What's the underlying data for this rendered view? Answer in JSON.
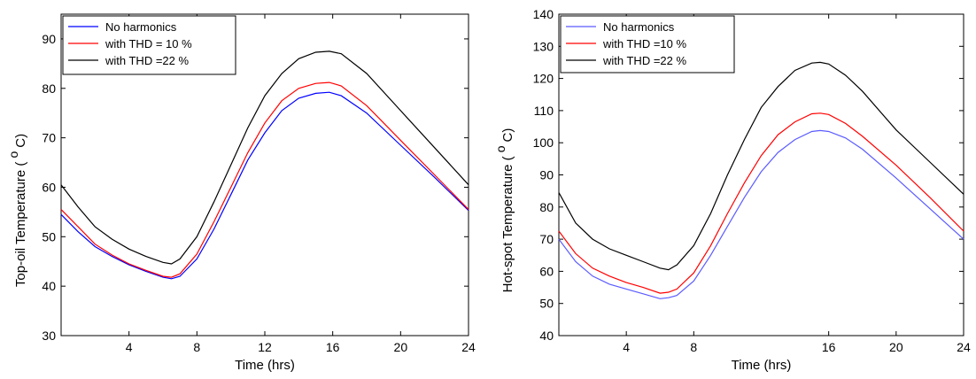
{
  "chart_data": [
    {
      "type": "line",
      "title": "",
      "xlabel": "Time (hrs)",
      "ylabel_main": "Top-oil Temperature (",
      "ylabel_unit": "o",
      "ylabel_unit_suffix": "C)",
      "xlim": [
        0,
        24
      ],
      "ylim": [
        30,
        95
      ],
      "xticks": [
        4,
        8,
        12,
        16,
        20,
        24
      ],
      "yticks": [
        30,
        40,
        50,
        60,
        70,
        80,
        90
      ],
      "legend_position": "top-left",
      "series": [
        {
          "name": "No harmonics",
          "color": "#0000ff",
          "x": [
            0,
            1,
            2,
            3,
            4,
            5,
            6,
            6.5,
            7,
            8,
            9,
            10,
            11,
            12,
            13,
            14,
            15,
            15.8,
            16.5,
            18,
            20,
            22,
            24
          ],
          "y": [
            54.5,
            51,
            48,
            46,
            44.3,
            43,
            41.8,
            41.5,
            42,
            45.5,
            51.5,
            58.5,
            65.5,
            71,
            75.5,
            78,
            79,
            79.2,
            78.5,
            75,
            68.5,
            62,
            55.3
          ]
        },
        {
          "name": "with THD = 10 %",
          "color": "#ff0000",
          "x": [
            0,
            1,
            2,
            3,
            4,
            5,
            6,
            6.5,
            7,
            8,
            9,
            10,
            11,
            12,
            13,
            14,
            15,
            15.8,
            16.5,
            18,
            20,
            22,
            24
          ],
          "y": [
            55.5,
            52,
            48.5,
            46.3,
            44.5,
            43.2,
            42,
            41.8,
            42.5,
            46.5,
            53,
            60,
            67,
            73,
            77.5,
            80,
            81,
            81.2,
            80.5,
            76.5,
            69.5,
            62.5,
            55.5
          ]
        },
        {
          "name": "with THD =22 %",
          "color": "#000000",
          "x": [
            0,
            1,
            2,
            3,
            4,
            5,
            6,
            6.5,
            7,
            8,
            9,
            10,
            11,
            12,
            13,
            14,
            15,
            15.8,
            16.5,
            18,
            20,
            22,
            24
          ],
          "y": [
            60.5,
            56,
            52,
            49.5,
            47.5,
            46,
            44.8,
            44.5,
            45.5,
            50,
            57,
            64.5,
            72,
            78.5,
            83,
            86,
            87.3,
            87.5,
            87,
            83,
            75.5,
            68,
            60.5
          ]
        }
      ]
    },
    {
      "type": "line",
      "title": "",
      "xlabel": "Time (hrs)",
      "ylabel_main": "Hot-spot Temperature (",
      "ylabel_unit": "o",
      "ylabel_unit_suffix": "C)",
      "xlim": [
        0,
        24
      ],
      "ylim": [
        40,
        140
      ],
      "xticks": [
        4,
        8,
        16,
        20,
        24
      ],
      "yticks": [
        40,
        50,
        60,
        70,
        80,
        90,
        100,
        110,
        120,
        130,
        140
      ],
      "legend_position": "top-left",
      "series": [
        {
          "name": "No harmonics",
          "color": "#5b5bff",
          "x": [
            0,
            1,
            2,
            3,
            4,
            5,
            6,
            6.5,
            7,
            8,
            9,
            10,
            11,
            12,
            13,
            14,
            15,
            15.5,
            16,
            17,
            18,
            20,
            22,
            24
          ],
          "y": [
            70,
            63,
            58.5,
            56,
            54.5,
            53,
            51.5,
            51.8,
            52.5,
            57,
            65,
            74,
            83,
            91,
            97,
            101,
            103.5,
            103.8,
            103.5,
            101.5,
            98,
            89,
            79.5,
            70
          ]
        },
        {
          "name": "with THD =10 %",
          "color": "#ff0000",
          "x": [
            0,
            1,
            2,
            3,
            4,
            5,
            6,
            6.5,
            7,
            8,
            9,
            10,
            11,
            12,
            13,
            14,
            15,
            15.5,
            16,
            17,
            18,
            20,
            22,
            24
          ],
          "y": [
            72.5,
            65.5,
            61,
            58.5,
            56.5,
            55,
            53.2,
            53.5,
            54.5,
            59.5,
            68,
            78,
            87.5,
            96,
            102.5,
            106.5,
            109,
            109.2,
            108.8,
            106,
            102,
            93,
            83,
            72.5
          ]
        },
        {
          "name": "with THD =22 %",
          "color": "#000000",
          "x": [
            0,
            1,
            2,
            3,
            4,
            5,
            6,
            6.5,
            7,
            8,
            9,
            10,
            11,
            12,
            13,
            14,
            15,
            15.5,
            16,
            17,
            18,
            20,
            22,
            24
          ],
          "y": [
            84.5,
            75,
            70,
            67,
            65,
            63,
            61,
            60.5,
            62,
            68,
            78,
            90,
            101,
            111,
            117.5,
            122.5,
            124.8,
            125,
            124.5,
            121,
            116,
            104,
            94,
            84
          ]
        }
      ]
    }
  ]
}
